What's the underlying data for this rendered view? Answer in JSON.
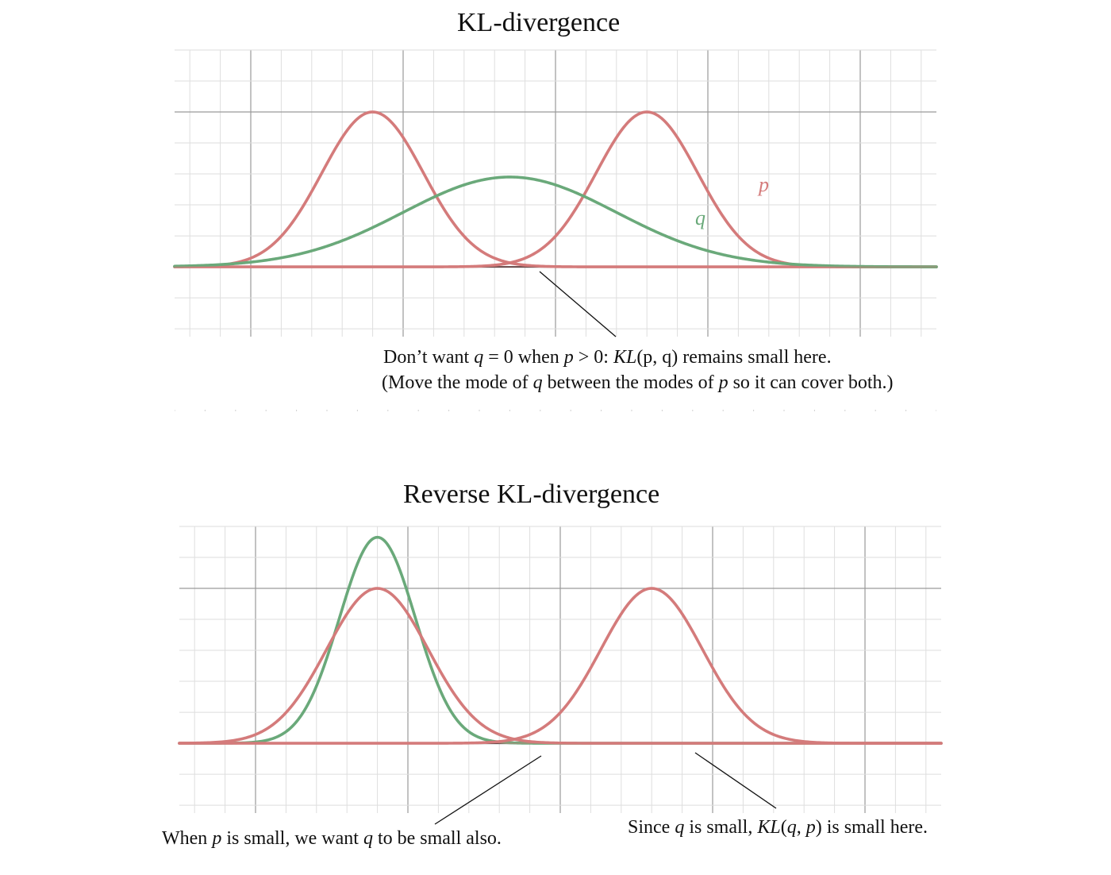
{
  "top": {
    "title": "KL-divergence",
    "label_p": "p",
    "label_q": "q",
    "note_line1": {
      "a": "Don’t want ",
      "q": "q",
      "b": " = 0 when ",
      "p": "p",
      "c": " > 0: ",
      "kl": "KL",
      "d": "(p, q) remains small here."
    },
    "note_line2": {
      "a": "(Move the mode of ",
      "q": "q",
      "b": " between the modes of ",
      "p": "p",
      "c": " so it can cover both.)"
    }
  },
  "bottom": {
    "title": "Reverse KL-divergence",
    "note_left": {
      "a": "When ",
      "p": "p",
      "b": " is small, we want ",
      "q": "q",
      "c": " to be small also."
    },
    "note_right": {
      "a": "Since ",
      "q": "q",
      "b": " is small, ",
      "kl": "KL",
      "c": "(",
      "q2": "q",
      "d": ", ",
      "p": "p",
      "e": ") is small here."
    }
  },
  "colors": {
    "p_curve": "#d47b7b",
    "q_curve": "#6aa97a",
    "axis": "#2a2a2a",
    "grid_major": "#9a9a9a",
    "grid_minor": "#dedede"
  },
  "chart_data": [
    {
      "type": "line",
      "title": "KL-divergence",
      "series": [
        {
          "name": "p",
          "components": [
            {
              "mean": -3.6,
              "sd": 1.0,
              "peak": 1.0
            },
            {
              "mean": 1.8,
              "sd": 1.0,
              "peak": 1.0
            }
          ]
        },
        {
          "name": "q",
          "components": [
            {
              "mean": -0.9,
              "sd": 2.1,
              "peak": 0.58
            }
          ]
        }
      ],
      "xlim": [
        -7.5,
        7.5
      ],
      "ylim": [
        -0.42,
        1.4
      ],
      "grid": true
    },
    {
      "type": "line",
      "title": "Reverse KL-divergence",
      "series": [
        {
          "name": "p",
          "components": [
            {
              "mean": -3.6,
              "sd": 1.0,
              "peak": 1.0
            },
            {
              "mean": 1.8,
              "sd": 1.0,
              "peak": 1.0
            }
          ]
        },
        {
          "name": "q",
          "components": [
            {
              "mean": -3.6,
              "sd": 0.75,
              "peak": 1.33
            }
          ]
        }
      ],
      "xlim": [
        -7.5,
        7.5
      ],
      "ylim": [
        -0.42,
        1.4
      ],
      "grid": true
    }
  ]
}
